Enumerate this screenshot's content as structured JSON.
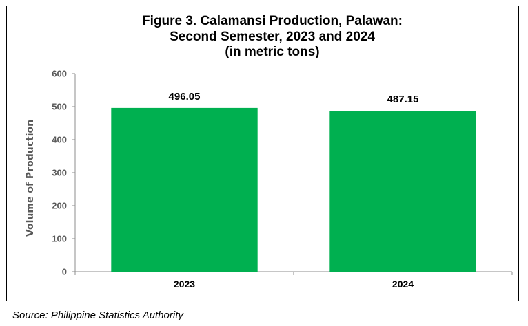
{
  "chart_data": {
    "type": "bar",
    "title_lines": [
      "Figure 3. Calamansi Production, Palawan:",
      "Second Semester, 2023 and 2024",
      "(in metric tons)"
    ],
    "categories": [
      "2023",
      "2024"
    ],
    "values": [
      496.05,
      487.15
    ],
    "value_labels": [
      "496.05",
      "487.15"
    ],
    "xlabel": "",
    "ylabel": "Volume of Production",
    "ylim": [
      0,
      600
    ],
    "yticks": [
      0,
      100,
      200,
      300,
      400,
      500,
      600
    ],
    "grid": false,
    "legend": "none",
    "bar_color": "#00B050"
  },
  "source": "Source: Philippine Statistics Authority"
}
